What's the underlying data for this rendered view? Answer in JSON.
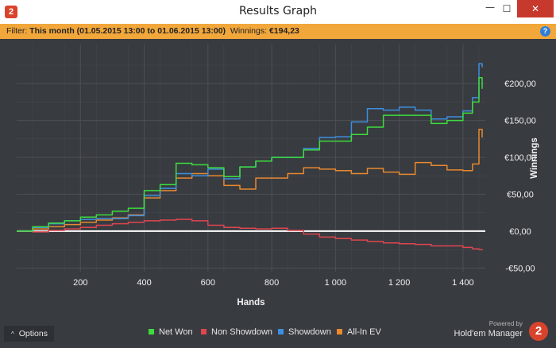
{
  "window": {
    "app_icon_glyph": "2",
    "title": "Results Graph",
    "minimize_glyph": "—",
    "maximize_glyph": "☐",
    "close_glyph": "✕"
  },
  "filter_bar": {
    "filter_label": "Filter:",
    "filter_value": "This month (01.05.2015 13:00 to 01.06.2015 13:00)",
    "winnings_label": "Winnings:",
    "winnings_value": "€194,23",
    "help_glyph": "?"
  },
  "options": {
    "label": "Options",
    "chevron": "^"
  },
  "branding": {
    "powered_by": "Powered by",
    "name": "Hold'em Manager",
    "logo_glyph": "2"
  },
  "colors": {
    "background": "#383b40",
    "grid": "#4c5056",
    "zero_line": "#ffffff",
    "net_won": "#3ddc3d",
    "non_showdown": "#e0454f",
    "showdown": "#3c8fe0",
    "all_in_ev": "#e8892e"
  },
  "chart_data": {
    "type": "line",
    "title": "",
    "xlabel": "Hands",
    "ylabel": "Winnings",
    "xlim": [
      0,
      1470
    ],
    "ylim": [
      -55,
      253
    ],
    "x_ticks": [
      200,
      400,
      600,
      800,
      1000,
      1200,
      1400
    ],
    "x_tick_labels": [
      "200",
      "400",
      "600",
      "800",
      "1 000",
      "1 200",
      "1 400"
    ],
    "y_ticks": [
      -50,
      0,
      50,
      100,
      150,
      200
    ],
    "y_tick_labels": [
      "-€50,00",
      "€0,00",
      "€50,00",
      "€100,00",
      "€150,00",
      "€200,00"
    ],
    "grid": true,
    "legend_position": "bottom",
    "x": [
      0,
      50,
      100,
      150,
      200,
      250,
      300,
      350,
      400,
      450,
      500,
      550,
      600,
      650,
      700,
      750,
      800,
      850,
      900,
      950,
      1000,
      1050,
      1100,
      1150,
      1200,
      1250,
      1300,
      1350,
      1400,
      1430,
      1450,
      1460
    ],
    "series": [
      {
        "name": "Net Won",
        "color": "#3ddc3d",
        "values": [
          0,
          6,
          11,
          14,
          19,
          22,
          27,
          31,
          55,
          63,
          92,
          90,
          86,
          74,
          87,
          95,
          100,
          100,
          110,
          122,
          122,
          131,
          141,
          157,
          157,
          157,
          146,
          150,
          160,
          175,
          208,
          193
        ]
      },
      {
        "name": "Non Showdown",
        "color": "#e0454f",
        "values": [
          0,
          -1,
          1,
          3,
          5,
          8,
          10,
          12,
          14,
          15,
          16,
          14,
          8,
          5,
          4,
          3,
          4,
          1,
          -4,
          -8,
          -10,
          -12,
          -14,
          -16,
          -17,
          -18,
          -20,
          -20,
          -22,
          -24,
          -25,
          -26
        ]
      },
      {
        "name": "Showdown",
        "color": "#3c8fe0",
        "values": [
          0,
          5,
          10,
          14,
          16,
          17,
          17,
          21,
          48,
          58,
          78,
          75,
          84,
          71,
          87,
          95,
          100,
          100,
          112,
          127,
          128,
          148,
          166,
          164,
          168,
          164,
          152,
          155,
          163,
          181,
          227,
          222
        ]
      },
      {
        "name": "All-In EV",
        "color": "#e8892e",
        "values": [
          0,
          3,
          6,
          9,
          12,
          15,
          18,
          22,
          45,
          55,
          72,
          78,
          75,
          62,
          57,
          72,
          72,
          78,
          86,
          84,
          82,
          78,
          85,
          80,
          77,
          93,
          89,
          83,
          82,
          91,
          138,
          127
        ]
      }
    ]
  }
}
